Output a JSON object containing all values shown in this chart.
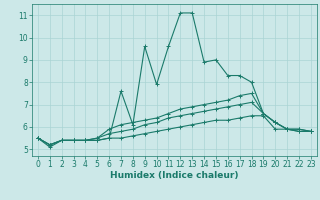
{
  "xlabel": "Humidex (Indice chaleur)",
  "background_color": "#cce8e8",
  "grid_color": "#aad4d4",
  "line_color": "#1a7a6a",
  "xlim": [
    -0.5,
    23.5
  ],
  "ylim": [
    4.7,
    11.5
  ],
  "xticks": [
    0,
    1,
    2,
    3,
    4,
    5,
    6,
    7,
    8,
    9,
    10,
    11,
    12,
    13,
    14,
    15,
    16,
    17,
    18,
    19,
    20,
    21,
    22,
    23
  ],
  "yticks": [
    5,
    6,
    7,
    8,
    9,
    10,
    11
  ],
  "series": [
    [
      5.5,
      5.1,
      5.4,
      5.4,
      5.4,
      5.4,
      5.5,
      7.6,
      6.1,
      9.6,
      7.9,
      9.6,
      11.1,
      11.1,
      8.9,
      9.0,
      8.3,
      8.3,
      8.0,
      6.6,
      6.2,
      5.9,
      5.8,
      5.8
    ],
    [
      5.5,
      5.2,
      5.4,
      5.4,
      5.4,
      5.5,
      5.9,
      6.1,
      6.2,
      6.3,
      6.4,
      6.6,
      6.8,
      6.9,
      7.0,
      7.1,
      7.2,
      7.4,
      7.5,
      6.6,
      6.2,
      5.9,
      5.9,
      5.8
    ],
    [
      5.5,
      5.2,
      5.4,
      5.4,
      5.4,
      5.5,
      5.7,
      5.8,
      5.9,
      6.1,
      6.2,
      6.4,
      6.5,
      6.6,
      6.7,
      6.8,
      6.9,
      7.0,
      7.1,
      6.6,
      6.2,
      5.9,
      5.9,
      5.8
    ],
    [
      5.5,
      5.2,
      5.4,
      5.4,
      5.4,
      5.4,
      5.5,
      5.5,
      5.6,
      5.7,
      5.8,
      5.9,
      6.0,
      6.1,
      6.2,
      6.3,
      6.3,
      6.4,
      6.5,
      6.5,
      5.9,
      5.9,
      5.8,
      5.8
    ]
  ],
  "marker": "+",
  "markersize": 3,
  "linewidth": 0.8,
  "tick_fontsize": 5.5,
  "xlabel_fontsize": 6.5
}
